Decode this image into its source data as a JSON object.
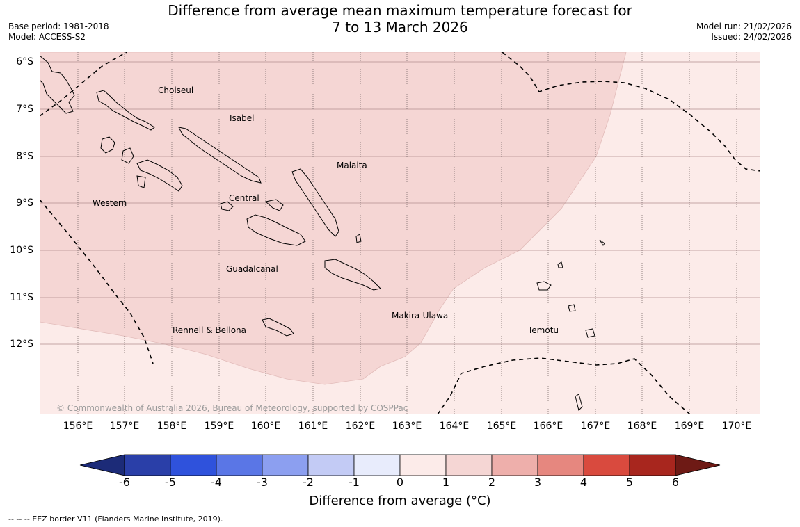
{
  "header": {
    "title_line1": "Difference from average mean maximum temperature forecast for",
    "title_line2": "7 to 13 March 2026",
    "base_period": "Base period: 1981-2018",
    "model": "Model: ACCESS-S2",
    "model_run": "Model run: 21/02/2026",
    "issued": "Issued: 24/02/2026"
  },
  "map": {
    "lat_labels": [
      "6°S",
      "7°S",
      "8°S",
      "9°S",
      "10°S",
      "11°S",
      "12°S"
    ],
    "lon_labels": [
      "156°E",
      "157°E",
      "158°E",
      "159°E",
      "160°E",
      "161°E",
      "162°E",
      "163°E",
      "164°E",
      "165°E",
      "166°E",
      "167°E",
      "168°E",
      "169°E",
      "170°E"
    ],
    "regions": [
      "Choiseul",
      "Isabel",
      "Malaita",
      "Western",
      "Central",
      "Guadalcanal",
      "Makira-Ulawa",
      "Rennell & Bellona",
      "Temotu"
    ],
    "copyright": "© Commonwealth of Australia 2026, Bureau of Meteorology, supported by COSPPac",
    "colors": {
      "anomaly_1_to_2": "#f5d6d4",
      "anomaly_0_to_1": "#fcebe9"
    }
  },
  "colorbar": {
    "ticks": [
      "-6",
      "-5",
      "-4",
      "-3",
      "-2",
      "-1",
      "0",
      "1",
      "2",
      "3",
      "4",
      "5",
      "6"
    ],
    "colors": [
      "#2a3fa8",
      "#2f52dc",
      "#5a76e6",
      "#8c9ff0",
      "#c3cbf5",
      "#e8ecfc",
      "#fcebe9",
      "#f5d6d4",
      "#eeafab",
      "#e6877f",
      "#d94a3e",
      "#a8261e"
    ],
    "under_color": "#1c2b78",
    "over_color": "#6e1a15",
    "title": "Difference from average (°C)"
  },
  "footer": {
    "legend": "--  --  -- EEZ border V11 (Flanders Marine Institute, 2019)."
  }
}
